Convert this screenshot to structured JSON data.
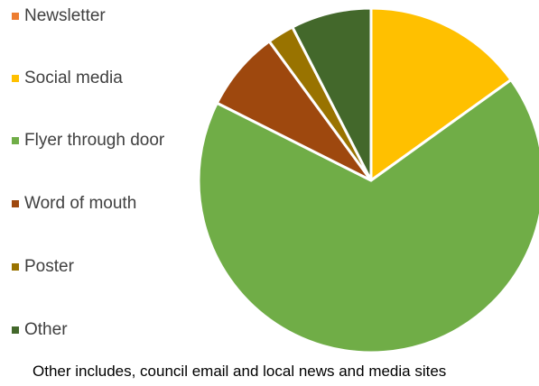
{
  "chart_data": {
    "type": "pie",
    "title": "",
    "categories": [
      "Newsletter",
      "Social media",
      "Flyer through door",
      "Word of mouth",
      "Poster",
      "Other"
    ],
    "values": [
      0,
      15,
      67,
      7.5,
      2.5,
      7.5
    ],
    "colors": [
      "#ED7D31",
      "#FFC000",
      "#70AD47",
      "#9E480E",
      "#997300",
      "#43682B"
    ],
    "legend_position": "left",
    "start_angle_deg": 0,
    "direction": "clockwise"
  },
  "legend": {
    "items": [
      {
        "label": "Newsletter",
        "color": "#ED7D31"
      },
      {
        "label": "Social media",
        "color": "#FFC000"
      },
      {
        "label": "Flyer through door",
        "color": "#70AD47"
      },
      {
        "label": "Word of mouth",
        "color": "#9E480E"
      },
      {
        "label": "Poster",
        "color": "#997300"
      },
      {
        "label": "Other",
        "color": "#43682B"
      }
    ]
  },
  "footnote": "Other includes, council email and local news and media sites"
}
